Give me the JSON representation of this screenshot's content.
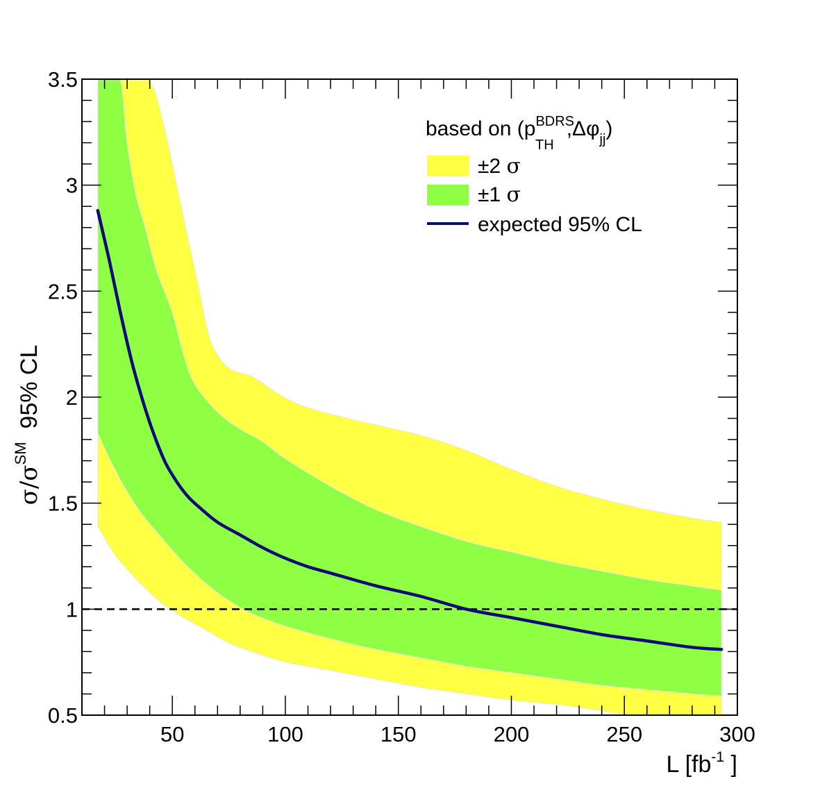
{
  "chart_data": {
    "type": "area",
    "xlabel": {
      "main": "L [fb",
      "sup": "-1",
      "end": " ]"
    },
    "ylabel": {
      "pre": "σ/σ",
      "sup": "SM",
      "post": "  95% CL"
    },
    "xlim": [
      10,
      300
    ],
    "ylim": [
      0.5,
      3.5
    ],
    "xticks": [
      50,
      100,
      150,
      200,
      250,
      300
    ],
    "xtick_labels": [
      "50",
      "100",
      "150",
      "200",
      "250",
      "300"
    ],
    "yticks": [
      0.5,
      1,
      1.5,
      2,
      2.5,
      3,
      3.5
    ],
    "ytick_labels": [
      "0.5",
      "1",
      "1.5",
      "2",
      "2.5",
      "3",
      "3.5"
    ],
    "reference_line": {
      "y": 1,
      "style": "dashed"
    },
    "legend": {
      "position": "top-right",
      "header": {
        "pre": "based on (p",
        "sup": "BDRS",
        "sub": "TH",
        "mid": ",Δφ",
        "sub2": "jj",
        "end": ")"
      },
      "entries": [
        {
          "label_pre": "±2 ",
          "label_sym": "σ",
          "color": "#ffff44"
        },
        {
          "label_pre": "±1 ",
          "label_sym": "σ",
          "color": "#8fff44"
        },
        {
          "label_pre": "expected 95% CL",
          "label_sym": "",
          "color": "#0a0a78"
        }
      ]
    },
    "band2": {
      "name": "±2 σ",
      "color": "#ffff44",
      "upper": [
        [
          17,
          3.5
        ],
        [
          21,
          3.5
        ],
        [
          22,
          3.5
        ],
        [
          27,
          3.5
        ],
        [
          32,
          3.52
        ],
        [
          37,
          3.52
        ],
        [
          42,
          3.45
        ],
        [
          47,
          3.25
        ],
        [
          52,
          3.0
        ],
        [
          57,
          2.75
        ],
        [
          62,
          2.5
        ],
        [
          66,
          2.3
        ],
        [
          70,
          2.2
        ],
        [
          76,
          2.13
        ],
        [
          85,
          2.1
        ],
        [
          95,
          2.03
        ],
        [
          105,
          1.97
        ],
        [
          120,
          1.92
        ],
        [
          140,
          1.87
        ],
        [
          160,
          1.82
        ],
        [
          180,
          1.75
        ],
        [
          200,
          1.66
        ],
        [
          220,
          1.58
        ],
        [
          240,
          1.52
        ],
        [
          260,
          1.47
        ],
        [
          280,
          1.43
        ],
        [
          293,
          1.41
        ]
      ],
      "lower": [
        [
          17,
          1.39
        ],
        [
          25,
          1.25
        ],
        [
          35,
          1.13
        ],
        [
          45,
          1.03
        ],
        [
          55,
          0.96
        ],
        [
          65,
          0.9
        ],
        [
          75,
          0.84
        ],
        [
          85,
          0.8
        ],
        [
          100,
          0.75
        ],
        [
          120,
          0.71
        ],
        [
          140,
          0.67
        ],
        [
          160,
          0.63
        ],
        [
          180,
          0.6
        ],
        [
          200,
          0.57
        ],
        [
          220,
          0.55
        ],
        [
          240,
          0.52
        ],
        [
          255,
          0.5
        ],
        [
          293,
          0.5
        ]
      ]
    },
    "band1": {
      "name": "±1 σ",
      "color": "#8fff44",
      "upper": [
        [
          17,
          3.5
        ],
        [
          22,
          3.5
        ],
        [
          27,
          3.5
        ],
        [
          30,
          3.2
        ],
        [
          34,
          2.95
        ],
        [
          38,
          2.8
        ],
        [
          43,
          2.6
        ],
        [
          50,
          2.4
        ],
        [
          55,
          2.2
        ],
        [
          60,
          2.06
        ],
        [
          70,
          1.93
        ],
        [
          80,
          1.85
        ],
        [
          90,
          1.79
        ],
        [
          100,
          1.71
        ],
        [
          120,
          1.58
        ],
        [
          140,
          1.47
        ],
        [
          160,
          1.39
        ],
        [
          180,
          1.32
        ],
        [
          200,
          1.27
        ],
        [
          220,
          1.22
        ],
        [
          240,
          1.18
        ],
        [
          260,
          1.14
        ],
        [
          280,
          1.11
        ],
        [
          293,
          1.09
        ]
      ],
      "lower": [
        [
          17,
          1.83
        ],
        [
          25,
          1.65
        ],
        [
          35,
          1.47
        ],
        [
          45,
          1.34
        ],
        [
          55,
          1.22
        ],
        [
          65,
          1.12
        ],
        [
          75,
          1.04
        ],
        [
          85,
          0.98
        ],
        [
          100,
          0.92
        ],
        [
          120,
          0.86
        ],
        [
          140,
          0.81
        ],
        [
          160,
          0.77
        ],
        [
          180,
          0.73
        ],
        [
          200,
          0.7
        ],
        [
          220,
          0.67
        ],
        [
          240,
          0.64
        ],
        [
          260,
          0.62
        ],
        [
          280,
          0.6
        ],
        [
          293,
          0.59
        ]
      ]
    },
    "series": [
      {
        "name": "expected 95% CL",
        "color": "#0a0a78",
        "points": [
          [
            17,
            2.88
          ],
          [
            22,
            2.65
          ],
          [
            27,
            2.4
          ],
          [
            32,
            2.17
          ],
          [
            37,
            1.98
          ],
          [
            42,
            1.82
          ],
          [
            47,
            1.69
          ],
          [
            52,
            1.6
          ],
          [
            57,
            1.53
          ],
          [
            62,
            1.48
          ],
          [
            70,
            1.41
          ],
          [
            80,
            1.35
          ],
          [
            90,
            1.29
          ],
          [
            100,
            1.24
          ],
          [
            110,
            1.2
          ],
          [
            120,
            1.17
          ],
          [
            140,
            1.11
          ],
          [
            160,
            1.06
          ],
          [
            180,
            1.0
          ],
          [
            200,
            0.96
          ],
          [
            220,
            0.92
          ],
          [
            240,
            0.88
          ],
          [
            260,
            0.85
          ],
          [
            280,
            0.82
          ],
          [
            293,
            0.81
          ]
        ]
      }
    ]
  }
}
